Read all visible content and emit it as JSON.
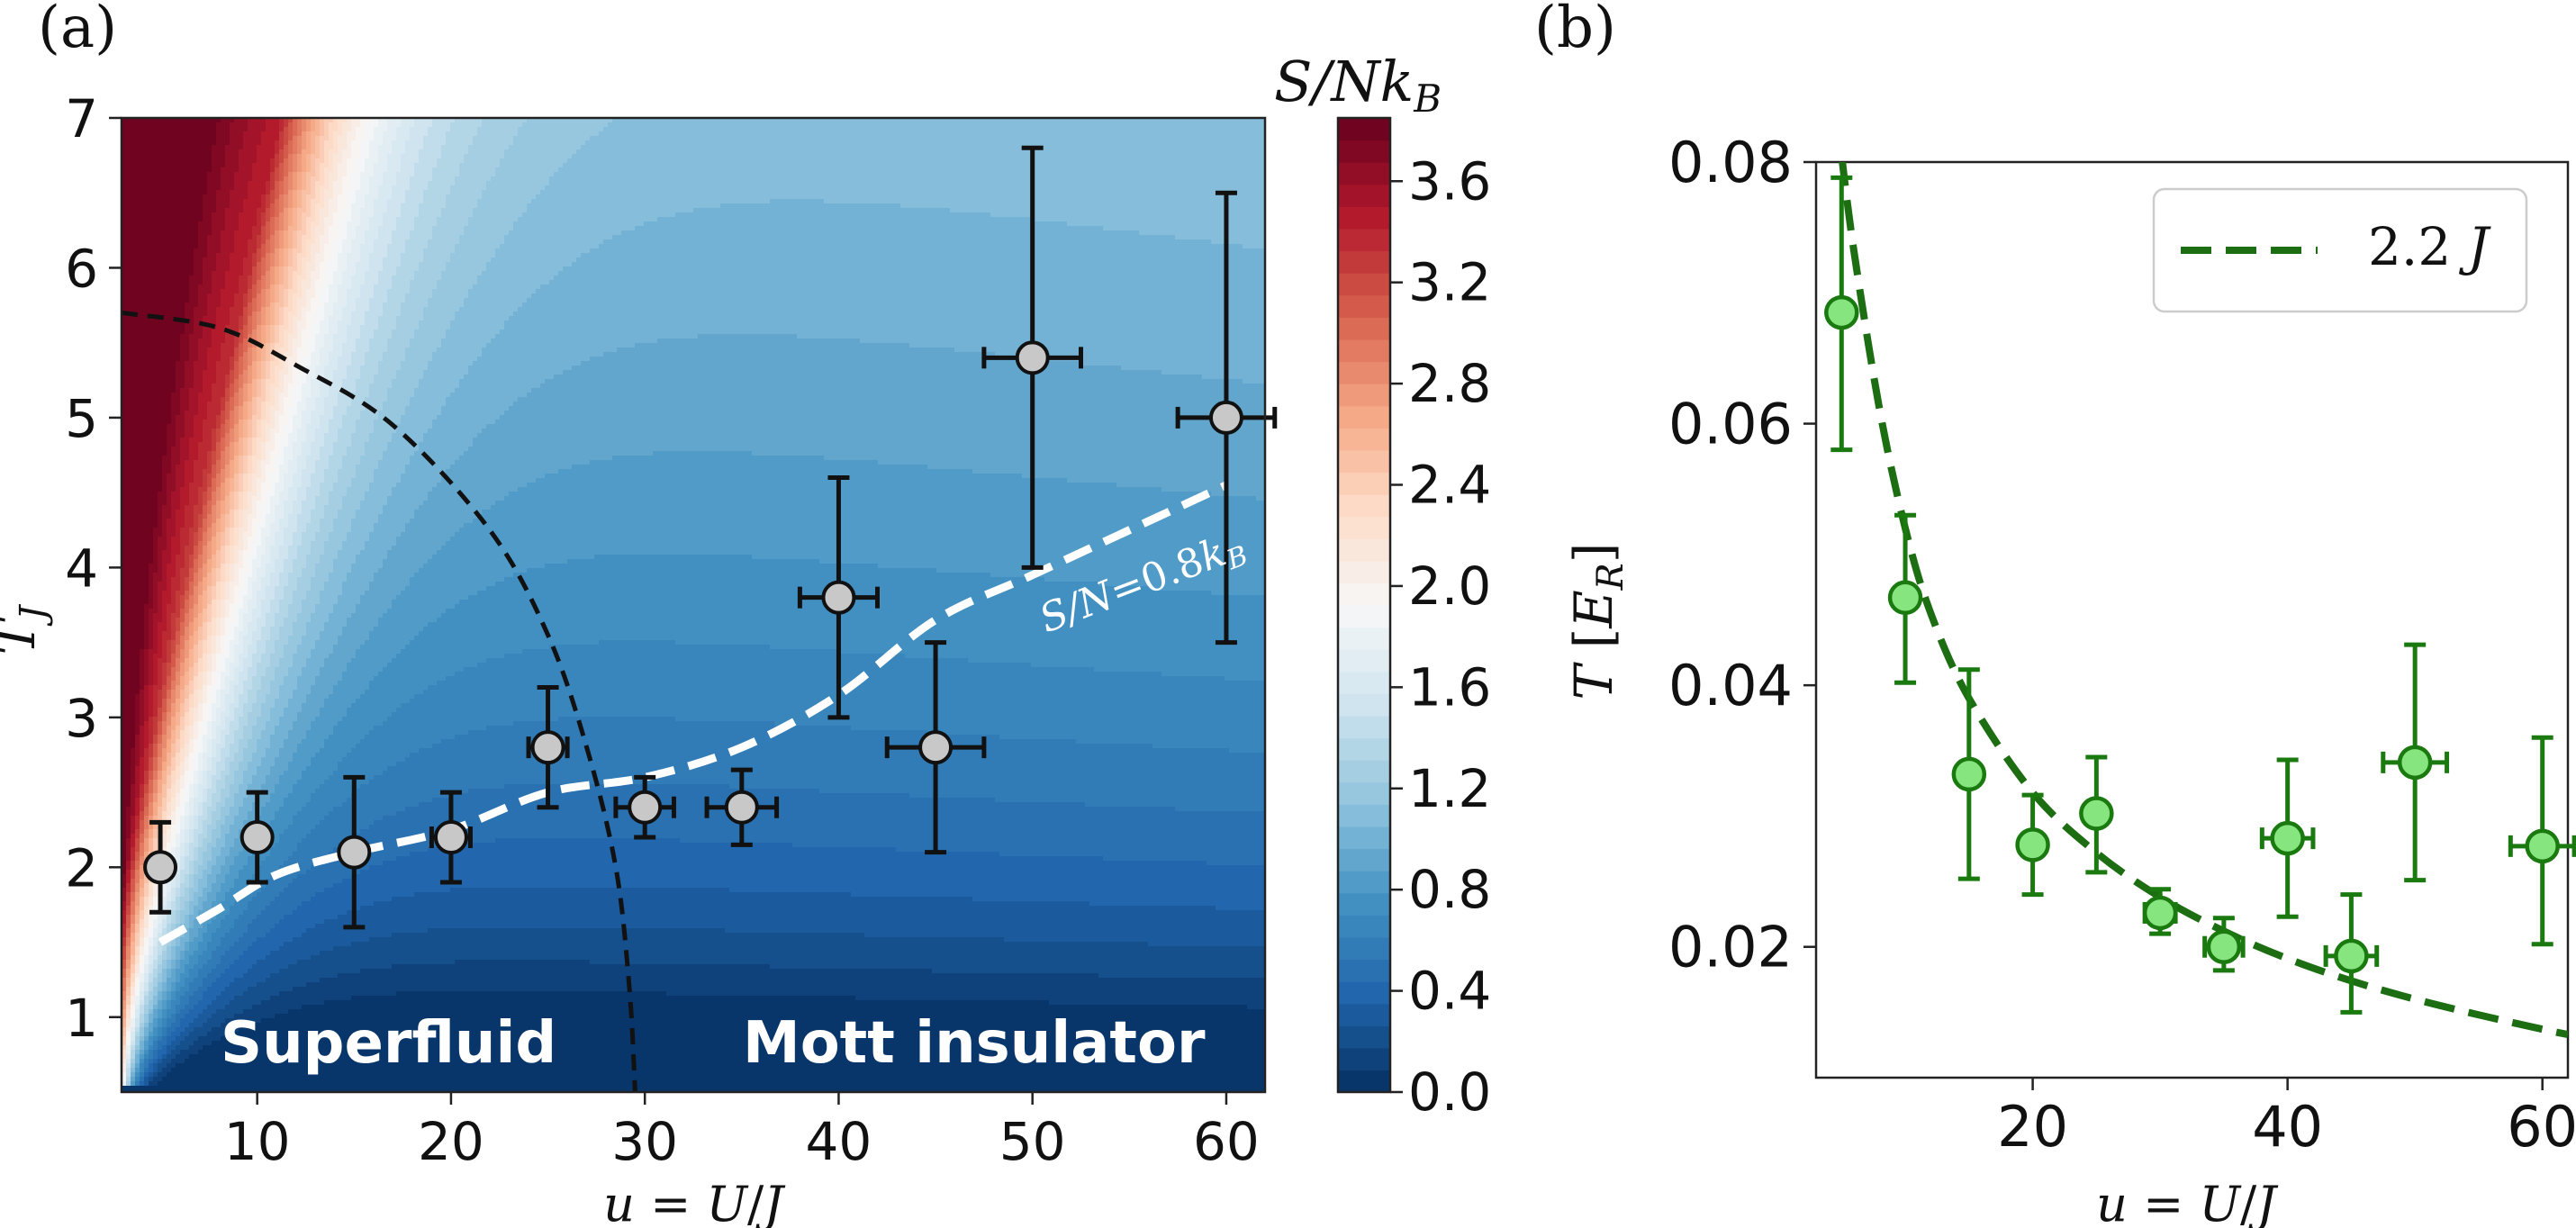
{
  "panel_a_label": "(a)",
  "panel_b_label": "(b)",
  "chart_data": [
    {
      "type": "heatmap",
      "panel": "(a)",
      "xlabel": "u = U/J",
      "ylabel": "T_J",
      "xlim": [
        3,
        62
      ],
      "ylim": [
        0.5,
        7
      ],
      "xticks": [
        10,
        20,
        30,
        40,
        50,
        60
      ],
      "yticks": [
        1,
        2,
        3,
        4,
        5,
        6,
        7
      ],
      "colorbar": {
        "label": "S/Nk_B",
        "range": [
          0,
          3.85
        ],
        "ticks": [
          "0.0",
          "0.4",
          "0.8",
          "1.2",
          "1.6",
          "2.0",
          "2.4",
          "2.8",
          "3.2",
          "3.6"
        ],
        "colormap": "RdBu_r",
        "levels": 44
      },
      "points": {
        "x": [
          5,
          10,
          15,
          20,
          25,
          30,
          35,
          40,
          45,
          50,
          60
        ],
        "y": [
          2.0,
          2.2,
          2.1,
          2.2,
          2.8,
          2.4,
          2.4,
          3.8,
          2.8,
          5.4,
          5.0
        ],
        "xerr": [
          0,
          0,
          0,
          1.0,
          1.0,
          1.5,
          1.8,
          2.0,
          2.5,
          2.5,
          2.5
        ],
        "yerr": [
          0.3,
          0.3,
          0.5,
          0.3,
          0.4,
          0.2,
          0.25,
          0.8,
          0.7,
          1.4,
          1.5
        ]
      },
      "phase_boundary": {
        "style": "black dashed",
        "x": [
          3,
          8,
          12,
          17,
          22,
          25,
          27,
          28.5,
          29.2,
          29.5
        ],
        "y": [
          5.7,
          5.6,
          5.35,
          4.95,
          4.25,
          3.55,
          2.8,
          2.0,
          1.2,
          0.5
        ]
      },
      "isentrope": {
        "label": "S/N = 0.8k_B",
        "style": "white dashed",
        "x": [
          5,
          8,
          11,
          15,
          20,
          25,
          30,
          35,
          40,
          45,
          50,
          55,
          60
        ],
        "y": [
          1.5,
          1.72,
          1.95,
          2.1,
          2.25,
          2.5,
          2.6,
          2.8,
          3.15,
          3.65,
          3.95,
          4.25,
          4.55
        ]
      },
      "region_labels": [
        "Superfluid",
        "Mott insulator"
      ]
    },
    {
      "type": "scatter",
      "panel": "(b)",
      "xlabel": "u = U/J",
      "ylabel": "T [E_R]",
      "xlim": [
        3,
        62
      ],
      "ylim": [
        0.01,
        0.08
      ],
      "xticks": [
        20,
        40,
        60
      ],
      "yticks": [
        "0.02",
        "0.04",
        "0.06",
        "0.08"
      ],
      "legend": {
        "label": "2.2 J",
        "position": "top-right"
      },
      "points": {
        "x": [
          5,
          10,
          15,
          20,
          25,
          30,
          35,
          40,
          45,
          50,
          60
        ],
        "y": [
          0.0685,
          0.0467,
          0.0332,
          0.0278,
          0.0302,
          0.0226,
          0.02,
          0.0283,
          0.0193,
          0.0341,
          0.0277
        ],
        "yerr_low": [
          0.0105,
          0.0065,
          0.008,
          0.0038,
          0.0045,
          0.0016,
          0.0018,
          0.006,
          0.0043,
          0.009,
          0.0075
        ],
        "yerr_high": [
          0.0103,
          0.0063,
          0.008,
          0.0038,
          0.0043,
          0.0018,
          0.0022,
          0.006,
          0.0047,
          0.009,
          0.0083
        ],
        "xerr": [
          0,
          0,
          0,
          0.8,
          0.8,
          1.2,
          1.5,
          2.0,
          2.0,
          2.5,
          2.5
        ]
      },
      "fit_curve": {
        "label": "2.2 J",
        "style": "dark green dashed",
        "x": [
          5,
          6,
          8,
          10,
          12,
          15,
          20,
          25,
          30,
          35,
          40,
          45,
          50,
          55,
          60,
          62
        ],
        "y": [
          0.0805,
          0.073,
          0.061,
          0.052,
          0.0455,
          0.039,
          0.0318,
          0.0272,
          0.0238,
          0.0212,
          0.0191,
          0.0174,
          0.016,
          0.0148,
          0.0137,
          0.0133
        ]
      }
    }
  ]
}
